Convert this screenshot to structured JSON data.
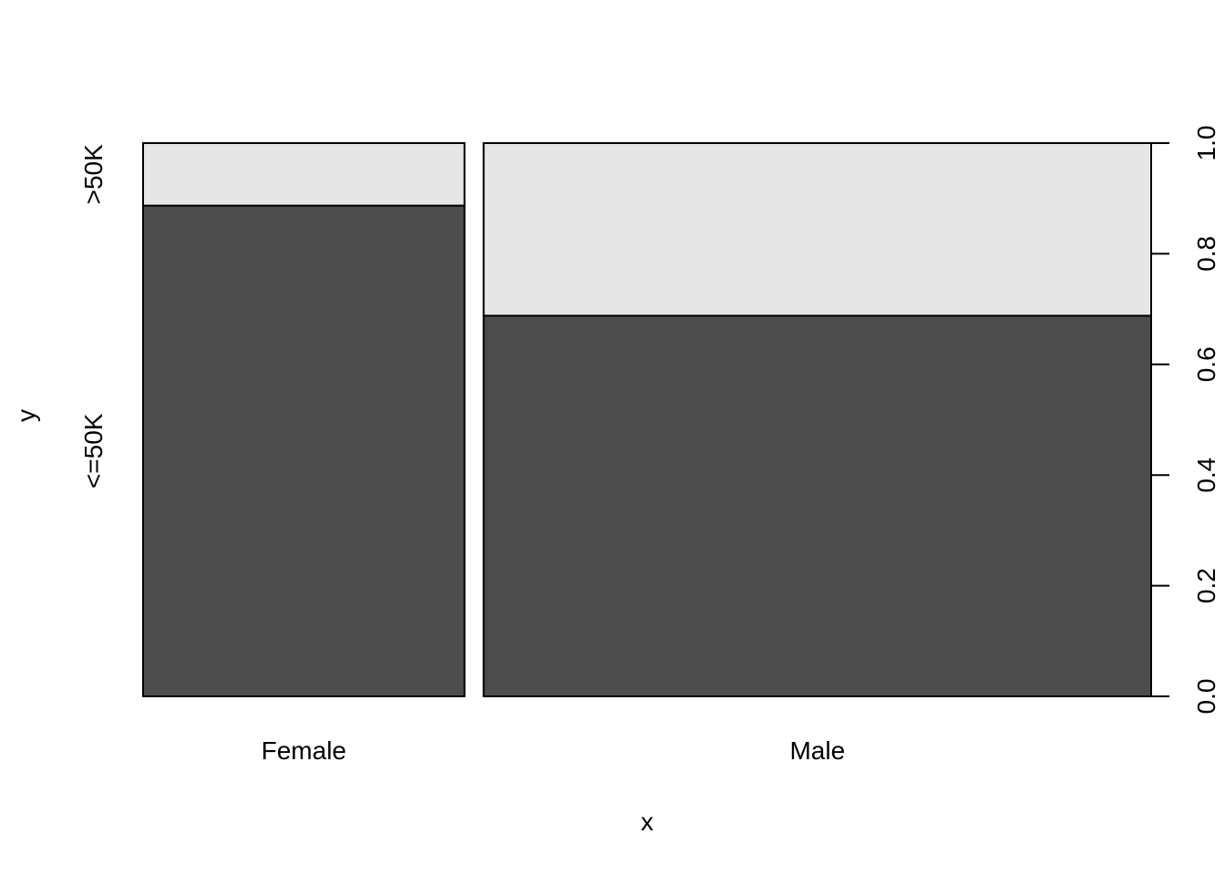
{
  "chart_data": {
    "type": "spineplot",
    "title": "",
    "xlabel": "x",
    "ylabel": "y",
    "categories": [
      "Female",
      "Male"
    ],
    "category_proportions": [
      0.325,
      0.675
    ],
    "series": [
      {
        "name": "<=50K",
        "values": [
          0.887,
          0.688
        ],
        "color": "#4d4d4d"
      },
      {
        "name": ">50K",
        "values": [
          0.113,
          0.312
        ],
        "color": "#e6e6e6"
      }
    ],
    "ylim": [
      0,
      1
    ],
    "y_ticks": [
      "0.0",
      "0.2",
      "0.4",
      "0.6",
      "0.8",
      "1.0"
    ],
    "y_axis_side": "right",
    "grid": false
  }
}
